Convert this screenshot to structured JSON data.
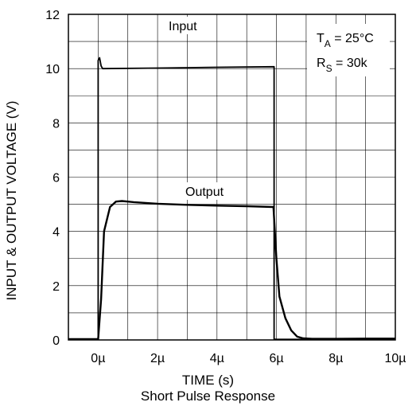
{
  "chart_data": {
    "type": "line",
    "title": "Short Pulse Response",
    "xlabel": "TIME (s)",
    "ylabel": "INPUT & OUTPUT VOLTAGE (V)",
    "xlim": [
      -1,
      10
    ],
    "ylim": [
      0,
      12
    ],
    "xticks": [
      0,
      2,
      4,
      6,
      8,
      10
    ],
    "xtick_labels": [
      "0µ",
      "2µ",
      "4µ",
      "6µ",
      "8µ",
      "10µ"
    ],
    "yticks": [
      0,
      2,
      4,
      6,
      8,
      10,
      12
    ],
    "ytick_labels": [
      "0",
      "2",
      "4",
      "6",
      "8",
      "10",
      "12"
    ],
    "grid": true,
    "annotations": {
      "condition_ta": {
        "base": "T",
        "sub": "A",
        "rest": " = 25°C"
      },
      "condition_rs": {
        "base": "R",
        "sub": "S",
        "rest": " = 30k"
      }
    },
    "series": [
      {
        "name": "Input",
        "x": [
          -1,
          0,
          0,
          0.05,
          0.1,
          0.15,
          2,
          4,
          5.92,
          5.92,
          6,
          8,
          10
        ],
        "y": [
          0.03,
          0.03,
          10.3,
          10.4,
          10.1,
          10.0,
          10.02,
          10.05,
          10.07,
          0.03,
          0.02,
          0.02,
          0.02
        ]
      },
      {
        "name": "Output",
        "x": [
          -1,
          0,
          0.1,
          0.2,
          0.4,
          0.6,
          0.8,
          1.2,
          2,
          3,
          4,
          5,
          5.9,
          6.0,
          6.1,
          6.3,
          6.5,
          6.7,
          6.9,
          7.2,
          8,
          9,
          10
        ],
        "y": [
          0.03,
          0.03,
          1.5,
          4.0,
          4.9,
          5.1,
          5.12,
          5.08,
          5.02,
          4.98,
          4.95,
          4.93,
          4.9,
          3.0,
          1.6,
          0.8,
          0.35,
          0.12,
          0.06,
          0.04,
          0.04,
          0.05,
          0.05
        ]
      }
    ]
  }
}
